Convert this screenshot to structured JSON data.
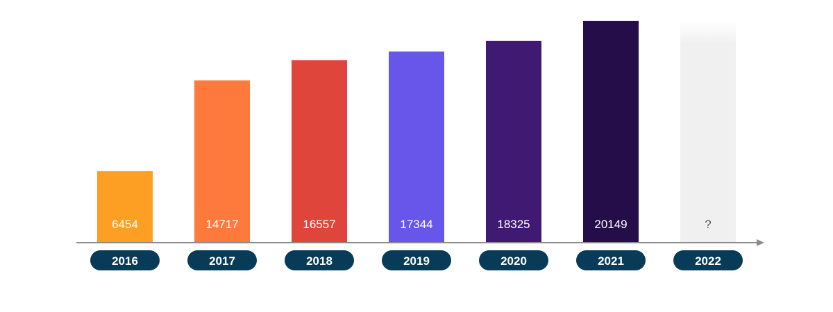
{
  "chart_data": {
    "type": "bar",
    "categories": [
      "2016",
      "2017",
      "2018",
      "2019",
      "2020",
      "2021",
      "2022"
    ],
    "values": [
      6454,
      14717,
      16557,
      17344,
      18325,
      20149,
      null
    ],
    "value_labels": [
      "6454",
      "14717",
      "16557",
      "17344",
      "18325",
      "20149",
      "?"
    ],
    "bar_colors": [
      "#fd9f22",
      "#fe7a3c",
      "#e0453c",
      "#6856ea",
      "#3f1972",
      "#250d4a",
      "#f0f0f0"
    ],
    "label_colors": [
      "#ffffff",
      "#ffffff",
      "#ffffff",
      "#ffffff",
      "#ffffff",
      "#ffffff",
      "#555555"
    ],
    "pill_color": "#073b57",
    "axis_color": "#8c8c8c",
    "ylim": [
      0,
      20149
    ],
    "grid": false,
    "legend": "none",
    "title": "",
    "xlabel": "",
    "ylabel": ""
  }
}
